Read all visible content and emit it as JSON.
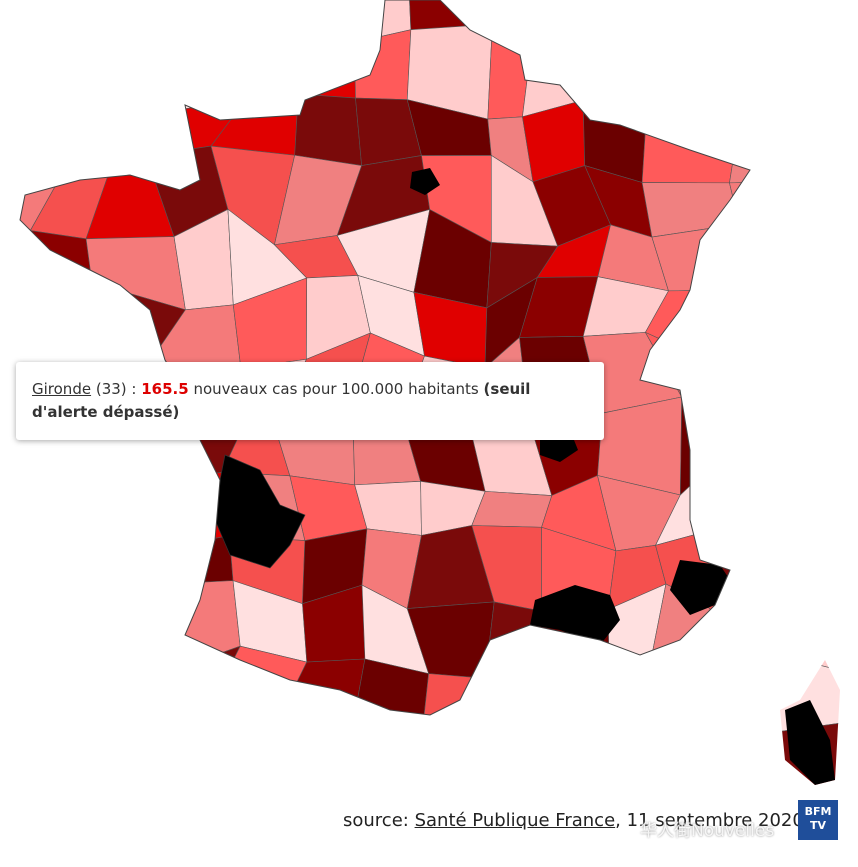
{
  "tooltip": {
    "department": "Gironde",
    "code": "(33) :",
    "rate": 165.5,
    "text": "nouveaux cas pour 100.000 habitants",
    "alert": "(seuil d'alerte dépassé)"
  },
  "source": {
    "label": "source:",
    "link": "Santé Publique France",
    "date": ", 11 septembre 2020 •"
  },
  "logo": {
    "line1": "BFM",
    "line2": "TV"
  },
  "watermark": "华人街Nouvelles"
}
